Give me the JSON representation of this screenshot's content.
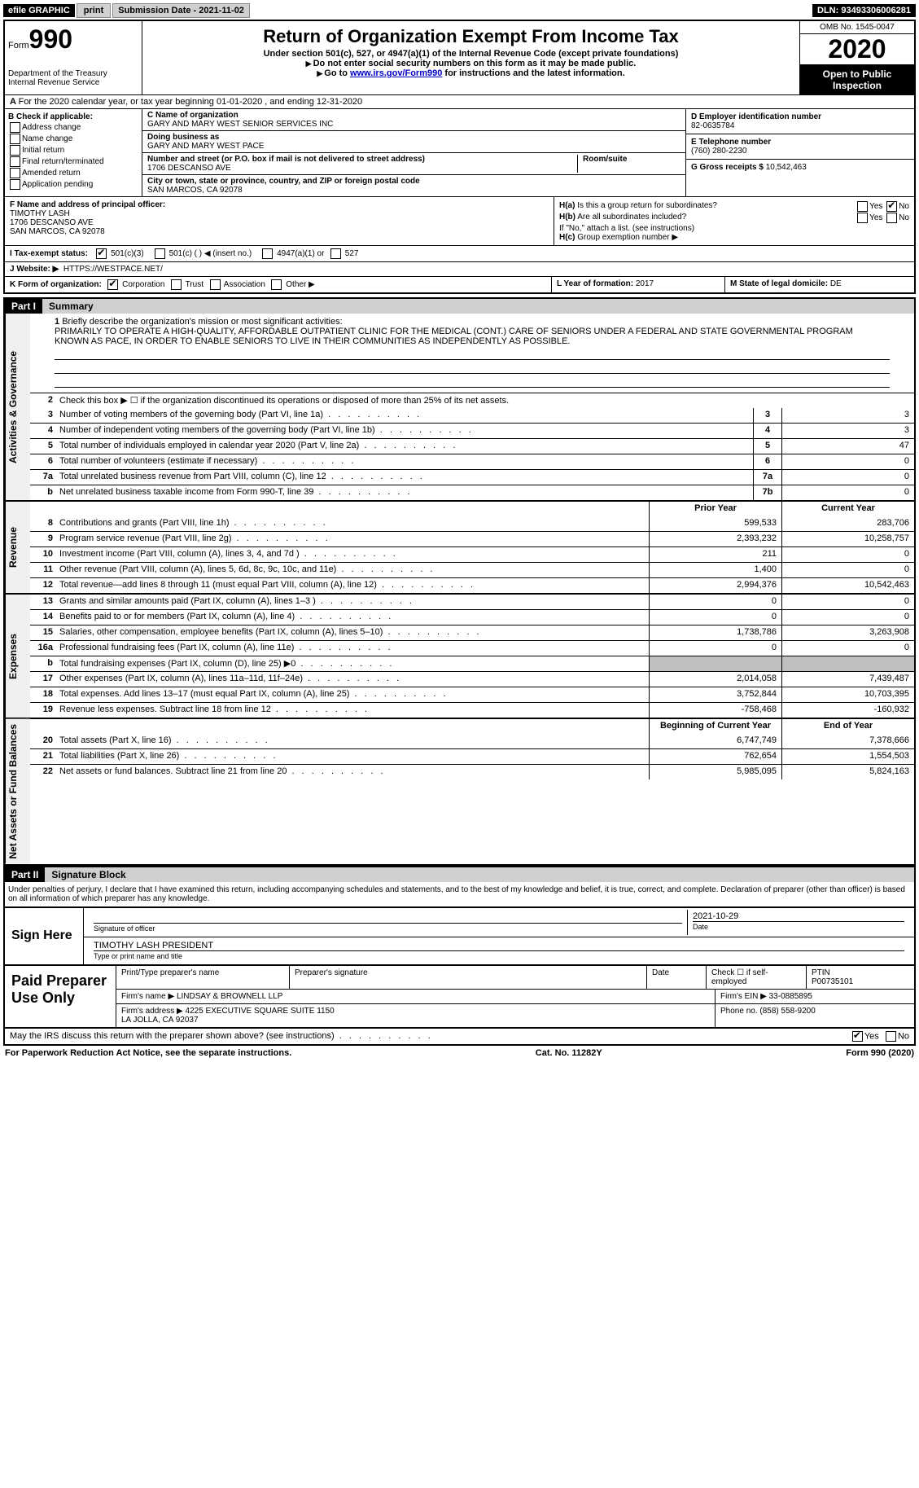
{
  "topbar": {
    "efile_label": "efile GRAPHIC",
    "print_btn": "print",
    "submission_label": "Submission Date - 2021-11-02",
    "dln": "DLN: 93493306006281"
  },
  "header": {
    "form_prefix": "Form",
    "form_number": "990",
    "dept": "Department of the Treasury\nInternal Revenue Service",
    "title": "Return of Organization Exempt From Income Tax",
    "subtitle": "Under section 501(c), 527, or 4947(a)(1) of the Internal Revenue Code (except private foundations)",
    "note1": "Do not enter social security numbers on this form as it may be made public.",
    "note2_prefix": "Go to ",
    "note2_link": "www.irs.gov/Form990",
    "note2_suffix": " for instructions and the latest information.",
    "omb": "OMB No. 1545-0047",
    "year": "2020",
    "open_public": "Open to Public Inspection"
  },
  "line_a": "For the 2020 calendar year, or tax year beginning 01-01-2020   , and ending 12-31-2020",
  "section_b": {
    "label": "B Check if applicable:",
    "opts": [
      "Address change",
      "Name change",
      "Initial return",
      "Final return/terminated",
      "Amended return",
      "Application pending"
    ]
  },
  "section_c": {
    "name_label": "C Name of organization",
    "name": "GARY AND MARY WEST SENIOR SERVICES INC",
    "dba_label": "Doing business as",
    "dba": "GARY AND MARY WEST PACE",
    "street_label": "Number and street (or P.O. box if mail is not delivered to street address)",
    "street": "1706 DESCANSO AVE",
    "room_label": "Room/suite",
    "city_label": "City or town, state or province, country, and ZIP or foreign postal code",
    "city": "SAN MARCOS, CA  92078"
  },
  "section_d": {
    "label": "D Employer identification number",
    "value": "82-0635784"
  },
  "section_e": {
    "label": "E Telephone number",
    "value": "(760) 280-2230"
  },
  "section_g": {
    "label": "G Gross receipts $",
    "value": "10,542,463"
  },
  "section_f": {
    "label": "F Name and address of principal officer:",
    "name": "TIMOTHY LASH",
    "street": "1706 DESCANSO AVE",
    "city": "SAN MARCOS, CA  92078"
  },
  "section_h": {
    "ha_label": "H(a)  Is this a group return for subordinates?",
    "ha_yes": "Yes",
    "ha_no": "No",
    "hb_label": "H(b)  Are all subordinates included?",
    "hb_note": "If \"No,\" attach a list. (see instructions)",
    "hc_label": "H(c)  Group exemption number"
  },
  "status_row": {
    "i_label": "I  Tax-exempt status:",
    "opts": [
      "501(c)(3)",
      "501(c) (   ) ◀ (insert no.)",
      "4947(a)(1) or",
      "527"
    ],
    "j_label": "J  Website: ▶",
    "j_value": "HTTPS://WESTPACE.NET/"
  },
  "klm": {
    "k_label": "K Form of organization:",
    "k_opts": [
      "Corporation",
      "Trust",
      "Association",
      "Other ▶"
    ],
    "l_label": "L Year of formation:",
    "l_value": "2017",
    "m_label": "M State of legal domicile:",
    "m_value": "DE"
  },
  "part1": {
    "part_label": "Part I",
    "part_title": "Summary",
    "tabs": {
      "gov": "Activities & Governance",
      "rev": "Revenue",
      "exp": "Expenses",
      "net": "Net Assets or Fund Balances"
    },
    "line1_label": "Briefly describe the organization's mission or most significant activities:",
    "mission": "PRIMARILY TO OPERATE A HIGH-QUALITY, AFFORDABLE OUTPATIENT CLINIC FOR THE MEDICAL (CONT.) CARE OF SENIORS UNDER A FEDERAL AND STATE GOVERNMENTAL PROGRAM KNOWN AS PACE, IN ORDER TO ENABLE SENIORS TO LIVE IN THEIR COMMUNITIES AS INDEPENDENTLY AS POSSIBLE.",
    "line2": "Check this box ▶ ☐  if the organization discontinued its operations or disposed of more than 25% of its net assets.",
    "gov_lines": [
      {
        "num": "3",
        "txt": "Number of voting members of the governing body (Part VI, line 1a)",
        "box": "3",
        "val": "3"
      },
      {
        "num": "4",
        "txt": "Number of independent voting members of the governing body (Part VI, line 1b)",
        "box": "4",
        "val": "3"
      },
      {
        "num": "5",
        "txt": "Total number of individuals employed in calendar year 2020 (Part V, line 2a)",
        "box": "5",
        "val": "47"
      },
      {
        "num": "6",
        "txt": "Total number of volunteers (estimate if necessary)",
        "box": "6",
        "val": "0"
      },
      {
        "num": "7a",
        "txt": "Total unrelated business revenue from Part VIII, column (C), line 12",
        "box": "7a",
        "val": "0"
      },
      {
        "num": "b",
        "txt": "Net unrelated business taxable income from Form 990-T, line 39",
        "box": "7b",
        "val": "0"
      }
    ],
    "col_headers": {
      "prior": "Prior Year",
      "current": "Current Year"
    },
    "rev_lines": [
      {
        "num": "8",
        "txt": "Contributions and grants (Part VIII, line 1h)",
        "prior": "599,533",
        "curr": "283,706"
      },
      {
        "num": "9",
        "txt": "Program service revenue (Part VIII, line 2g)",
        "prior": "2,393,232",
        "curr": "10,258,757"
      },
      {
        "num": "10",
        "txt": "Investment income (Part VIII, column (A), lines 3, 4, and 7d )",
        "prior": "211",
        "curr": "0"
      },
      {
        "num": "11",
        "txt": "Other revenue (Part VIII, column (A), lines 5, 6d, 8c, 9c, 10c, and 11e)",
        "prior": "1,400",
        "curr": "0"
      },
      {
        "num": "12",
        "txt": "Total revenue—add lines 8 through 11 (must equal Part VIII, column (A), line 12)",
        "prior": "2,994,376",
        "curr": "10,542,463"
      }
    ],
    "exp_lines": [
      {
        "num": "13",
        "txt": "Grants and similar amounts paid (Part IX, column (A), lines 1–3 )",
        "prior": "0",
        "curr": "0"
      },
      {
        "num": "14",
        "txt": "Benefits paid to or for members (Part IX, column (A), line 4)",
        "prior": "0",
        "curr": "0"
      },
      {
        "num": "15",
        "txt": "Salaries, other compensation, employee benefits (Part IX, column (A), lines 5–10)",
        "prior": "1,738,786",
        "curr": "3,263,908"
      },
      {
        "num": "16a",
        "txt": "Professional fundraising fees (Part IX, column (A), line 11e)",
        "prior": "0",
        "curr": "0"
      },
      {
        "num": "b",
        "txt": "Total fundraising expenses (Part IX, column (D), line 25) ▶0",
        "prior": "",
        "curr": "",
        "shade": true
      },
      {
        "num": "17",
        "txt": "Other expenses (Part IX, column (A), lines 11a–11d, 11f–24e)",
        "prior": "2,014,058",
        "curr": "7,439,487"
      },
      {
        "num": "18",
        "txt": "Total expenses. Add lines 13–17 (must equal Part IX, column (A), line 25)",
        "prior": "3,752,844",
        "curr": "10,703,395"
      },
      {
        "num": "19",
        "txt": "Revenue less expenses. Subtract line 18 from line 12",
        "prior": "-758,468",
        "curr": "-160,932"
      }
    ],
    "net_headers": {
      "begin": "Beginning of Current Year",
      "end": "End of Year"
    },
    "net_lines": [
      {
        "num": "20",
        "txt": "Total assets (Part X, line 16)",
        "prior": "6,747,749",
        "curr": "7,378,666"
      },
      {
        "num": "21",
        "txt": "Total liabilities (Part X, line 26)",
        "prior": "762,654",
        "curr": "1,554,503"
      },
      {
        "num": "22",
        "txt": "Net assets or fund balances. Subtract line 21 from line 20",
        "prior": "5,985,095",
        "curr": "5,824,163"
      }
    ]
  },
  "part2": {
    "part_label": "Part II",
    "part_title": "Signature Block",
    "declaration": "Under penalties of perjury, I declare that I have examined this return, including accompanying schedules and statements, and to the best of my knowledge and belief, it is true, correct, and complete. Declaration of preparer (other than officer) is based on all information of which preparer has any knowledge.",
    "sign_here": "Sign Here",
    "sig_officer_label": "Signature of officer",
    "sig_date": "2021-10-29",
    "sig_date_label": "Date",
    "typed_name": "TIMOTHY LASH  PRESIDENT",
    "typed_label": "Type or print name and title",
    "paid_label": "Paid Preparer Use Only",
    "paid_headers": [
      "Print/Type preparer's name",
      "Preparer's signature",
      "Date",
      "Check ☐ if self-employed",
      "PTIN"
    ],
    "ptin": "P00735101",
    "firm_name_label": "Firm's name   ▶",
    "firm_name": "LINDSAY & BROWNELL LLP",
    "firm_ein_label": "Firm's EIN ▶",
    "firm_ein": "33-0885895",
    "firm_addr_label": "Firm's address ▶",
    "firm_addr": "4225 EXECUTIVE SQUARE SUITE 1150\nLA JOLLA, CA  92037",
    "phone_label": "Phone no.",
    "phone": "(858) 558-9200",
    "discuss": "May the IRS discuss this return with the preparer shown above? (see instructions)",
    "discuss_yes": "Yes",
    "discuss_no": "No"
  },
  "footer": {
    "left": "For Paperwork Reduction Act Notice, see the separate instructions.",
    "center": "Cat. No. 11282Y",
    "right": "Form 990 (2020)"
  }
}
